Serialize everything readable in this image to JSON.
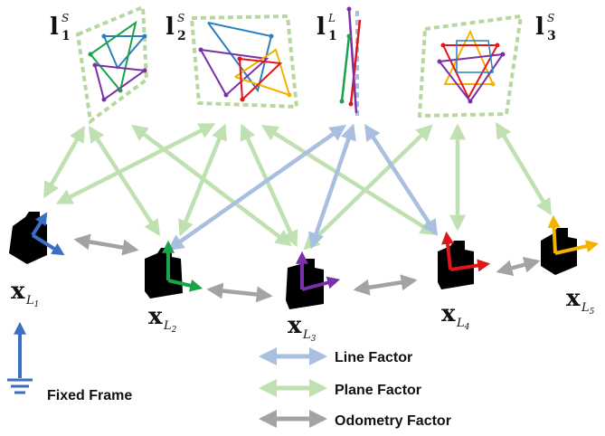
{
  "landmarks": {
    "plane1": {
      "main": "l",
      "sub": "1",
      "sup": "S"
    },
    "plane2": {
      "main": "l",
      "sub": "2",
      "sup": "S"
    },
    "line1": {
      "main": "l",
      "sub": "1",
      "sup": "L"
    },
    "plane3": {
      "main": "l",
      "sub": "3",
      "sup": "S"
    }
  },
  "poses": [
    {
      "main": "x",
      "sub": "L",
      "sub_index": "1"
    },
    {
      "main": "x",
      "sub": "L",
      "sub_index": "2"
    },
    {
      "main": "x",
      "sub": "L",
      "sub_index": "3"
    },
    {
      "main": "x",
      "sub": "L",
      "sub_index": "4"
    },
    {
      "main": "x",
      "sub": "L",
      "sub_index": "5"
    }
  ],
  "pose_axis_colors": [
    "#3a6fc4",
    "#1aa34a",
    "#7b2fa8",
    "#e0161b",
    "#f2b200"
  ],
  "fixed_frame_label": "Fixed Frame",
  "legend": [
    {
      "label": "Line Factor",
      "color": "#a9bfe0"
    },
    {
      "label": "Plane Factor",
      "color": "#bfe0b0"
    },
    {
      "label": "Odometry Factor",
      "color": "#a3a3a3"
    }
  ],
  "colors": {
    "line_factor": "#a9bfe0",
    "plane_factor": "#bfe0b0",
    "odometry_factor": "#a3a3a3",
    "plane_border": "#b7d79f",
    "fixed_frame": "#3a6fc4"
  }
}
